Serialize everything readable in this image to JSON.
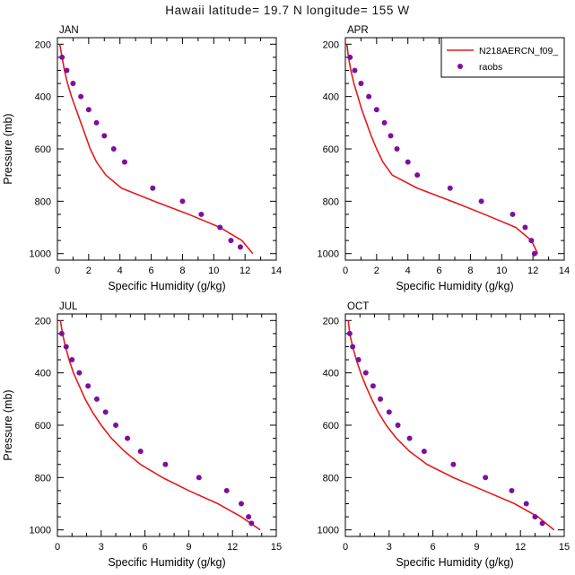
{
  "title": "Hawaii  latitude= 19.7 N longitude= 155 W",
  "colors": {
    "model_line": "#e41a1c",
    "raobs_dot": "#7d0f9e",
    "frame": "#000000",
    "background": "#ffffff"
  },
  "legend": {
    "entries": [
      {
        "label": "N218AERCN_f09_",
        "marker": "line"
      },
      {
        "label": "raobs",
        "marker": "dot"
      }
    ]
  },
  "chart_data": [
    {
      "type": "line",
      "panel_label": "JAN",
      "xlabel": "Specific Humidity (g/kg)",
      "ylabel": "Pressure (mb)",
      "xlim": [
        0,
        14
      ],
      "xticks": [
        0,
        2,
        4,
        6,
        8,
        10,
        12,
        14
      ],
      "xminor_step": 1,
      "ylim": [
        175,
        1025
      ],
      "yticks": [
        200,
        400,
        600,
        800,
        1000
      ],
      "yminor_step": 50,
      "y_axis_inverted": true,
      "show_ylabel": true,
      "show_legend": false,
      "series": [
        {
          "name": "N218AERCN_f09_",
          "type": "line",
          "pressure_mb": [
            200,
            250,
            300,
            350,
            400,
            450,
            500,
            550,
            600,
            650,
            700,
            750,
            800,
            850,
            900,
            950,
            1000
          ],
          "humidity_g_per_kg": [
            0.15,
            0.3,
            0.45,
            0.65,
            0.9,
            1.2,
            1.5,
            1.8,
            2.1,
            2.5,
            3.1,
            4.1,
            6.2,
            8.4,
            10.4,
            11.8,
            12.5
          ]
        },
        {
          "name": "raobs",
          "type": "scatter",
          "pressure_mb": [
            250,
            300,
            350,
            400,
            450,
            500,
            550,
            600,
            650,
            750,
            800,
            850,
            900,
            950,
            975
          ],
          "humidity_g_per_kg": [
            0.3,
            0.6,
            1.0,
            1.5,
            2.0,
            2.5,
            3.0,
            3.6,
            4.3,
            6.1,
            8.0,
            9.2,
            10.4,
            11.1,
            11.7
          ]
        }
      ]
    },
    {
      "type": "line",
      "panel_label": "APR",
      "xlabel": "Specific Humidity (g/kg)",
      "ylabel": "Pressure (mb)",
      "xlim": [
        0,
        14
      ],
      "xticks": [
        0,
        2,
        4,
        6,
        8,
        10,
        12,
        14
      ],
      "xminor_step": 1,
      "ylim": [
        175,
        1025
      ],
      "yticks": [
        200,
        400,
        600,
        800,
        1000
      ],
      "yminor_step": 50,
      "y_axis_inverted": true,
      "show_ylabel": false,
      "show_legend": true,
      "series": [
        {
          "name": "N218AERCN_f09_",
          "type": "line",
          "pressure_mb": [
            200,
            250,
            300,
            350,
            400,
            450,
            500,
            550,
            600,
            650,
            700,
            750,
            800,
            850,
            900,
            950,
            1000
          ],
          "humidity_g_per_kg": [
            0.1,
            0.2,
            0.35,
            0.55,
            0.8,
            1.05,
            1.35,
            1.65,
            2.0,
            2.4,
            3.0,
            4.6,
            6.8,
            8.9,
            10.9,
            11.9,
            12.3
          ]
        },
        {
          "name": "raobs",
          "type": "scatter",
          "pressure_mb": [
            250,
            300,
            350,
            400,
            450,
            500,
            550,
            600,
            650,
            700,
            750,
            800,
            850,
            900,
            950,
            1000
          ],
          "humidity_g_per_kg": [
            0.3,
            0.6,
            1.0,
            1.5,
            2.0,
            2.5,
            2.9,
            3.3,
            4.0,
            4.6,
            6.7,
            8.7,
            10.7,
            11.5,
            11.9,
            12.1
          ]
        }
      ]
    },
    {
      "type": "line",
      "panel_label": "JUL",
      "xlabel": "Specific Humidity (g/kg)",
      "ylabel": "Pressure (mb)",
      "xlim": [
        0,
        15
      ],
      "xticks": [
        0,
        3,
        6,
        9,
        12,
        15
      ],
      "xminor_step": 1,
      "ylim": [
        175,
        1025
      ],
      "yticks": [
        200,
        400,
        600,
        800,
        1000
      ],
      "yminor_step": 50,
      "y_axis_inverted": true,
      "show_ylabel": true,
      "show_legend": false,
      "series": [
        {
          "name": "N218AERCN_f09_",
          "type": "line",
          "pressure_mb": [
            200,
            250,
            300,
            350,
            400,
            450,
            500,
            550,
            600,
            650,
            700,
            750,
            800,
            850,
            900,
            950,
            1000
          ],
          "humidity_g_per_kg": [
            0.2,
            0.35,
            0.55,
            0.8,
            1.1,
            1.5,
            1.9,
            2.4,
            3.0,
            3.7,
            4.6,
            5.7,
            7.2,
            9.0,
            11.0,
            12.6,
            13.9
          ]
        },
        {
          "name": "raobs",
          "type": "scatter",
          "pressure_mb": [
            250,
            300,
            350,
            400,
            450,
            500,
            550,
            600,
            650,
            700,
            750,
            800,
            850,
            900,
            950,
            975
          ],
          "humidity_g_per_kg": [
            0.3,
            0.6,
            1.0,
            1.5,
            2.1,
            2.7,
            3.3,
            4.0,
            4.8,
            5.7,
            7.4,
            9.7,
            11.6,
            12.6,
            13.1,
            13.3
          ]
        }
      ]
    },
    {
      "type": "line",
      "panel_label": "OCT",
      "xlabel": "Specific Humidity (g/kg)",
      "ylabel": "Pressure (mb)",
      "xlim": [
        0,
        15
      ],
      "xticks": [
        0,
        3,
        6,
        9,
        12,
        15
      ],
      "xminor_step": 1,
      "ylim": [
        175,
        1025
      ],
      "yticks": [
        200,
        400,
        600,
        800,
        1000
      ],
      "yminor_step": 50,
      "y_axis_inverted": true,
      "show_ylabel": false,
      "show_legend": false,
      "series": [
        {
          "name": "N218AERCN_f09_",
          "type": "line",
          "pressure_mb": [
            200,
            250,
            300,
            350,
            400,
            450,
            500,
            550,
            600,
            650,
            700,
            750,
            800,
            850,
            900,
            950,
            1000
          ],
          "humidity_g_per_kg": [
            0.2,
            0.3,
            0.5,
            0.75,
            1.05,
            1.4,
            1.8,
            2.25,
            2.8,
            3.5,
            4.4,
            5.6,
            7.4,
            9.5,
            11.6,
            13.2,
            14.3
          ]
        },
        {
          "name": "raobs",
          "type": "scatter",
          "pressure_mb": [
            250,
            300,
            350,
            400,
            450,
            500,
            550,
            600,
            650,
            700,
            750,
            800,
            850,
            900,
            950,
            975
          ],
          "humidity_g_per_kg": [
            0.3,
            0.5,
            0.9,
            1.4,
            1.9,
            2.4,
            3.0,
            3.6,
            4.4,
            5.4,
            7.4,
            9.6,
            11.4,
            12.4,
            13.0,
            13.5
          ]
        }
      ]
    }
  ]
}
